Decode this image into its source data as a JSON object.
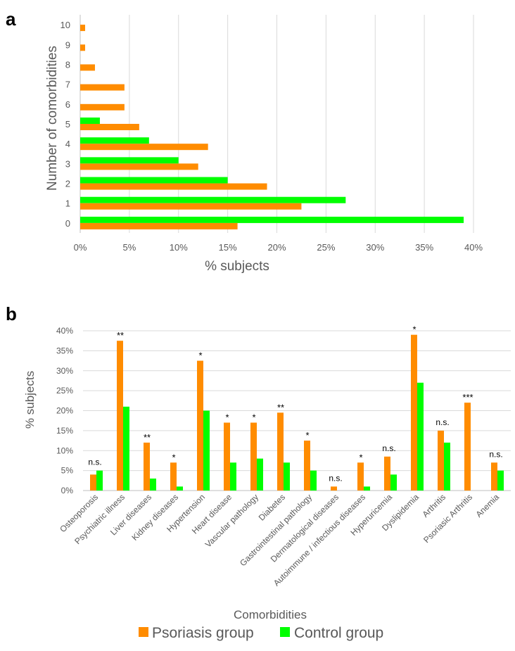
{
  "colors": {
    "psoriasis": "#FF8C00",
    "control": "#00FF00"
  },
  "panels": {
    "a": "a",
    "b": "b"
  },
  "legend": {
    "psoriasis": "Psoriasis group",
    "control": "Control group"
  },
  "chart_data": [
    {
      "type": "bar",
      "orientation": "horizontal",
      "categories": [
        "0",
        "1",
        "2",
        "3",
        "4",
        "5",
        "6",
        "7",
        "8",
        "9",
        "10"
      ],
      "series": [
        {
          "name": "Psoriasis group",
          "values": [
            16,
            22.5,
            19,
            12,
            13,
            6,
            4.5,
            4.5,
            1.5,
            0.5,
            0.5
          ]
        },
        {
          "name": "Control group",
          "values": [
            39,
            27,
            15,
            10,
            7,
            2,
            0,
            0,
            0,
            0,
            0
          ]
        }
      ],
      "xlabel": "% subjects",
      "ylabel": "Number of comorbidities",
      "xlim": [
        0,
        40
      ],
      "xticks": [
        "0%",
        "5%",
        "10%",
        "15%",
        "20%",
        "25%",
        "30%",
        "35%",
        "40%"
      ],
      "grid": "vertical",
      "legend": "bottom"
    },
    {
      "type": "bar",
      "categories": [
        "Osteoporosis",
        "Psychiatric illness",
        "Liver diseases",
        "Kidney diseases",
        "Hypertension",
        "Heart disease",
        "Vascular pathology",
        "Diabetes",
        "Gastrointestinal pathology",
        "Dermatological diseases",
        "Autoimmune / infectious diseases",
        "Hyperuricemia",
        "Dyslipidemia",
        "Arthritis",
        "Psoriasic Arthritis",
        "Anemia"
      ],
      "series": [
        {
          "name": "Psoriasis group",
          "values": [
            4,
            37.5,
            12,
            7,
            32.5,
            17,
            17,
            19.5,
            12.5,
            1,
            7,
            8.5,
            39,
            15,
            22,
            7
          ]
        },
        {
          "name": "Control group",
          "values": [
            5,
            21,
            3,
            1,
            20,
            7,
            8,
            7,
            5,
            0,
            1,
            4,
            27,
            12,
            0,
            5
          ]
        }
      ],
      "significance": [
        "n.s.",
        "**",
        "**",
        "*",
        "*",
        "*",
        "*",
        "**",
        "*",
        "n.s.",
        "*",
        "n.s.",
        "*",
        "n.s.",
        "***",
        "n.s."
      ],
      "xlabel": "Comorbidities",
      "ylabel": "% subjects",
      "ylim": [
        0,
        40
      ],
      "yticks": [
        "0%",
        "5%",
        "10%",
        "15%",
        "20%",
        "25%",
        "30%",
        "35%",
        "40%"
      ],
      "grid": "horizontal",
      "legend": "bottom"
    }
  ]
}
